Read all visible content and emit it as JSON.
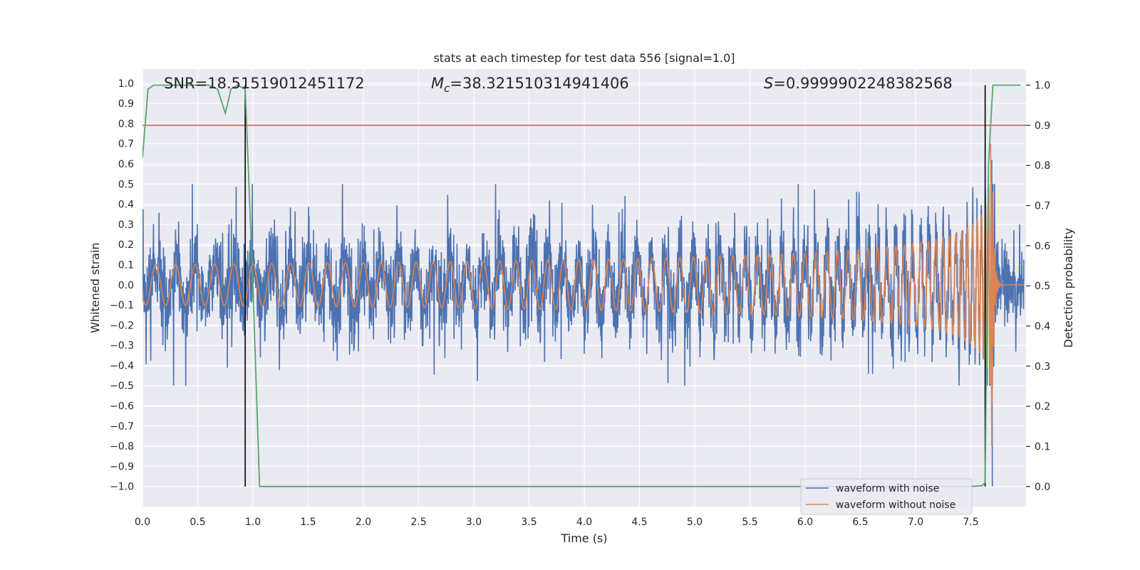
{
  "chart_data": {
    "type": "line",
    "title": "stats at each timestep for test data 556 [signal=1.0]",
    "xlabel": "Time (s)",
    "ylabel": "Whitened strain",
    "y2label": "Detection probability",
    "xlim": [
      0.0,
      8.0
    ],
    "ylim": [
      -1.1,
      1.07
    ],
    "y2lim": [
      -0.05,
      1.04
    ],
    "xticks": [
      "0.0",
      "0.5",
      "1.0",
      "1.5",
      "2.0",
      "2.5",
      "3.0",
      "3.5",
      "4.0",
      "4.5",
      "5.0",
      "5.5",
      "6.0",
      "6.5",
      "7.0",
      "7.5"
    ],
    "yticks": [
      "1.0",
      "0.9",
      "0.8",
      "0.7",
      "0.6",
      "0.5",
      "0.4",
      "0.3",
      "0.2",
      "0.1",
      "0.0",
      "−0.1",
      "−0.2",
      "−0.3",
      "−0.4",
      "−0.5",
      "−0.6",
      "−0.7",
      "−0.8",
      "−0.9",
      "−1.0"
    ],
    "y2ticks": [
      "1.0",
      "0.9",
      "0.8",
      "0.7",
      "0.6",
      "0.5",
      "0.4",
      "0.3",
      "0.2",
      "0.1",
      "0.0"
    ],
    "annotations": {
      "snr": "SNR=18.51519012451172",
      "mc_symbol": "M",
      "mc_sub": "c",
      "mc_value": "=38.321510314941406",
      "s_symbol": "S",
      "s_value": "=0.9999902248382568"
    },
    "threshold": 0.9,
    "detection_markers_x": [
      0.93,
      7.63
    ],
    "detection_probability": {
      "x": [
        0.0,
        0.05,
        0.1,
        0.2,
        0.3,
        0.4,
        0.5,
        0.6,
        0.68,
        0.75,
        0.8,
        0.86,
        0.93,
        1.0,
        1.06,
        2.0,
        3.0,
        4.0,
        5.0,
        6.0,
        7.0,
        7.5,
        7.6,
        7.63,
        7.66,
        7.7,
        7.8,
        7.95
      ],
      "y": [
        0.82,
        0.99,
        1.0,
        1.0,
        1.0,
        1.0,
        1.0,
        1.0,
        0.99,
        0.93,
        0.99,
        1.0,
        0.99,
        0.5,
        0.0,
        0.0,
        0.0,
        0.0,
        0.0,
        0.0,
        0.0,
        0.0,
        0.002,
        0.01,
        0.8,
        1.0,
        1.0,
        1.0
      ]
    },
    "series": [
      {
        "name": "waveform with noise",
        "color": "#4c72b0",
        "description": "noisy whitened strain, amplitude about 0.3, peaks to about 0.48"
      },
      {
        "name": "waveform without noise",
        "color": "#dd8452",
        "description": "chirp signal, merger near 7.7 s, peak about 0.7"
      },
      {
        "name": "detection probability",
        "color": "#55a868"
      }
    ],
    "threshold_color": "#c44e52",
    "marker_color": "#000000"
  }
}
